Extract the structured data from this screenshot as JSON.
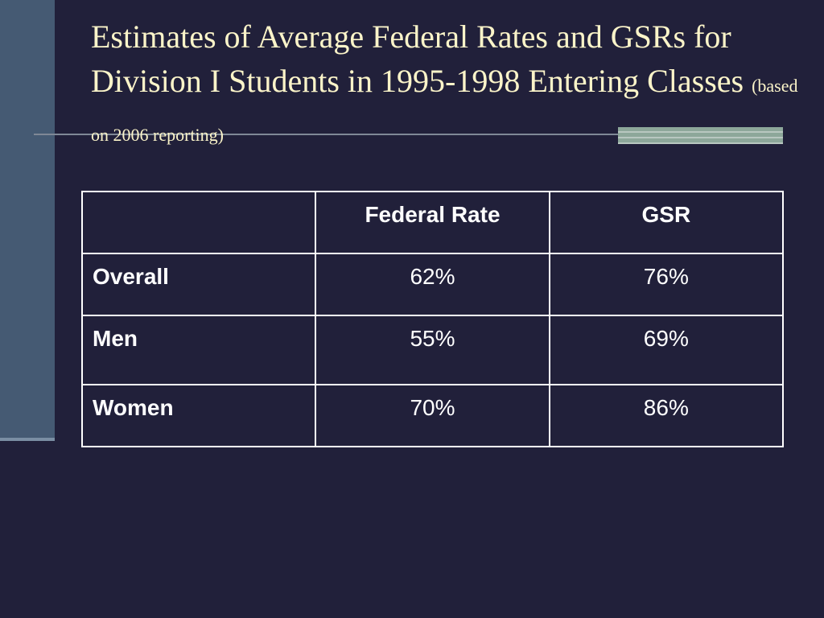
{
  "slide": {
    "title": "Estimates of Average Federal Rates and GSRs for Division I Students in 1995-1998 Entering Classes",
    "subtitle": "(based on 2006 reporting)"
  },
  "table": {
    "headers": [
      "",
      "Federal Rate",
      "GSR"
    ],
    "rows": [
      {
        "label": "Overall",
        "federal_rate": "62%",
        "gsr": "76%"
      },
      {
        "label": "Men",
        "federal_rate": "55%",
        "gsr": "69%"
      },
      {
        "label": "Women",
        "federal_rate": "70%",
        "gsr": "86%"
      }
    ]
  },
  "colors": {
    "background": "#21203a",
    "title_text": "#fbf4c9",
    "left_bar": "#455a73",
    "accent_bar": "#8da79a",
    "table_text": "#ffffff"
  }
}
